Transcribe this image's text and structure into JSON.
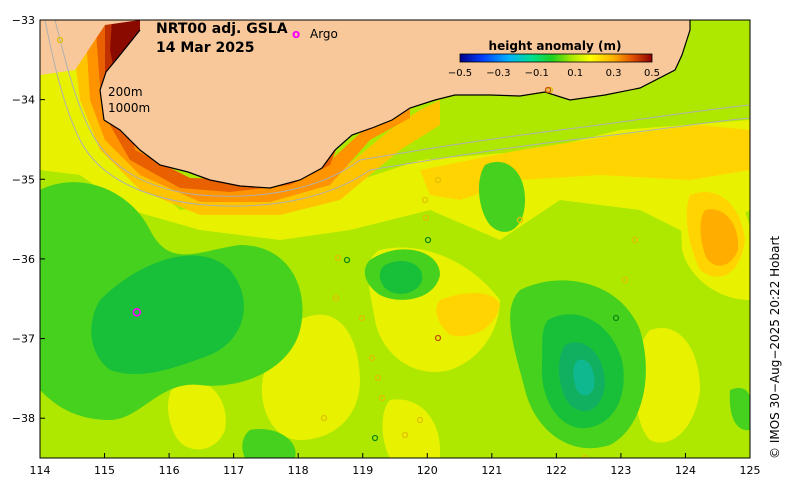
{
  "title": {
    "product": "NRT00 adj. GSLA",
    "date": "14 Mar 2025"
  },
  "legend": {
    "argo_symbol": "o",
    "argo_label": "Argo",
    "colorbar_title": "height anomaly (m)",
    "colorbar_ticks": [
      "−0.5",
      "−0.3",
      "−0.1",
      "0.1",
      "0.3",
      "0.5"
    ],
    "colorbar_stops": [
      "#00008b",
      "#0040ff",
      "#00b0ff",
      "#00e08a",
      "#20d020",
      "#a8e800",
      "#ffff00",
      "#ffb000",
      "#e05000",
      "#8b0000"
    ]
  },
  "isobaths": {
    "shallow": "200m",
    "deep": "1000m"
  },
  "axes": {
    "x_ticks": [
      "114",
      "115",
      "116",
      "117",
      "118",
      "119",
      "120",
      "121",
      "122",
      "123",
      "124",
      "125"
    ],
    "y_ticks": [
      "−33",
      "−34",
      "−35",
      "−36",
      "−37",
      "−38"
    ],
    "lon_range": [
      114,
      125
    ],
    "lat_range": [
      -38.5,
      -33
    ]
  },
  "credit": "© IMOS 30−Aug−2025 20:22 Hobart",
  "colors": {
    "land": "#f8c89a",
    "base_field": "#aee800",
    "argo": "#ff00ff"
  },
  "argo_floats": [
    {
      "lon": 115.5,
      "lat": -36.67
    }
  ]
}
